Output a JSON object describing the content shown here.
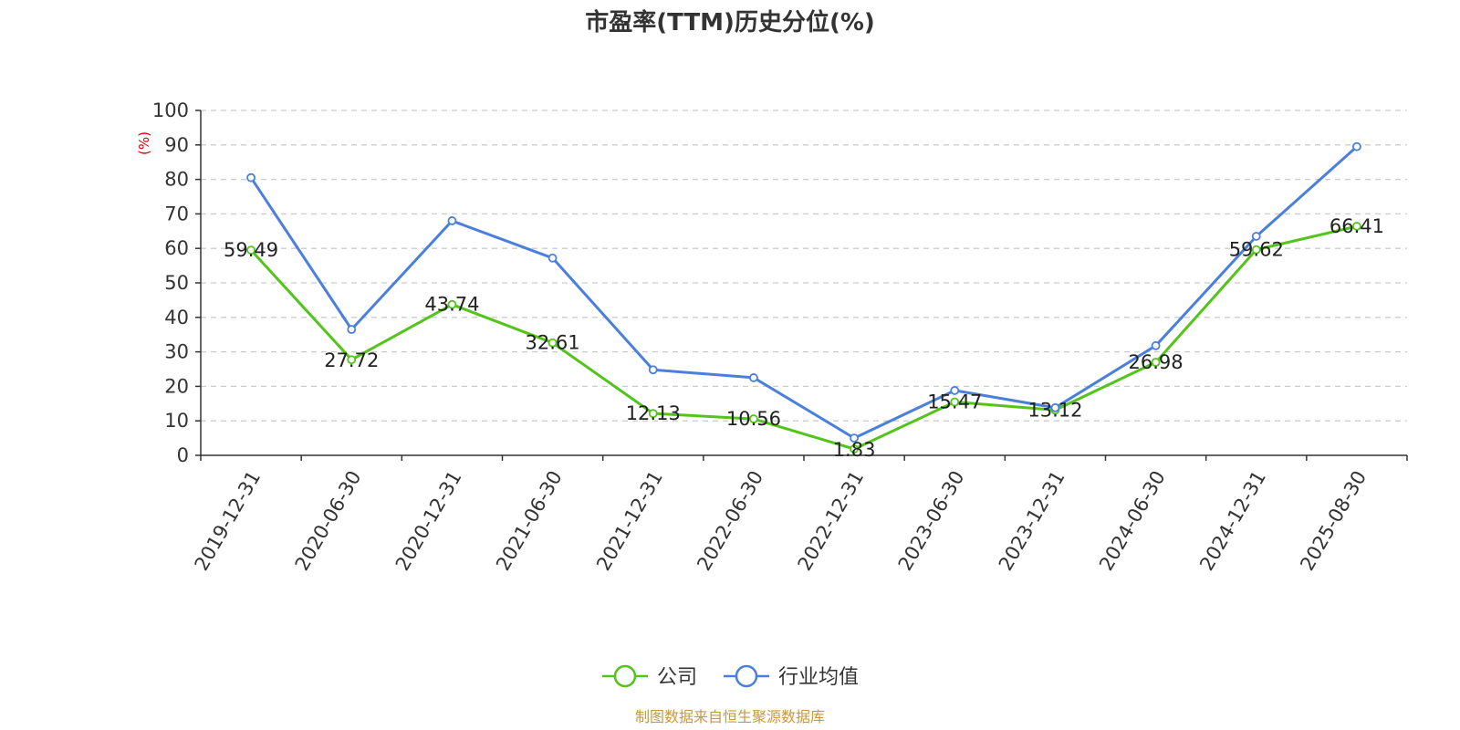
{
  "chart_data": {
    "type": "line",
    "title": "市盈率(TTM)历史分位(%)",
    "ylabel": "(%)",
    "xlabel": "",
    "ylim": [
      0,
      100
    ],
    "yticks": [
      0,
      10,
      20,
      30,
      40,
      50,
      60,
      70,
      80,
      90,
      100
    ],
    "grid": true,
    "legend_position": "bottom",
    "categories": [
      "2019-12-31",
      "2020-06-30",
      "2020-12-31",
      "2021-06-30",
      "2021-12-31",
      "2022-06-30",
      "2022-12-31",
      "2023-06-30",
      "2023-12-31",
      "2024-06-30",
      "2024-12-31",
      "2025-08-30"
    ],
    "series": [
      {
        "name": "公司",
        "color": "#52c41a",
        "values": [
          59.49,
          27.72,
          43.74,
          32.61,
          12.13,
          10.56,
          1.83,
          15.47,
          13.12,
          26.98,
          59.62,
          66.41
        ],
        "data_labels": [
          "59.49",
          "27.72",
          "43.74",
          "32.61",
          "12.13",
          "10.56",
          "1.83",
          "15.47",
          "13.12",
          "26.98",
          "59.62",
          "66.41"
        ]
      },
      {
        "name": "行业均值",
        "color": "#4a7fdc",
        "values": [
          80.5,
          36.5,
          68.0,
          57.2,
          24.8,
          22.5,
          5.0,
          18.8,
          13.8,
          31.8,
          63.5,
          89.5
        ]
      }
    ],
    "source": "制图数据来自恒生聚源数据库"
  }
}
